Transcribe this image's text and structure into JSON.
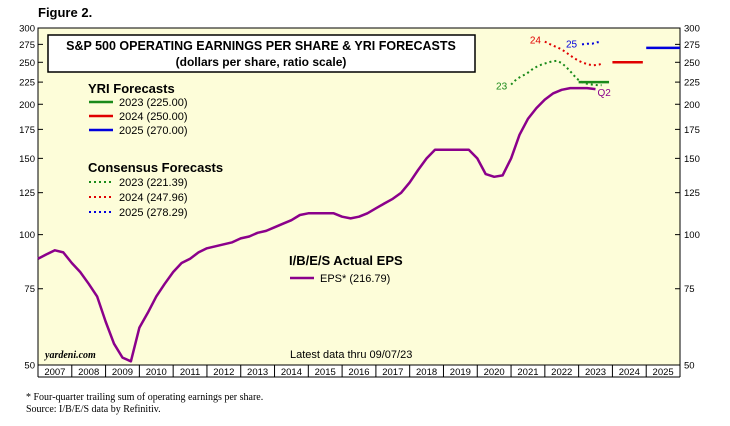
{
  "figure_label": "Figure 2.",
  "chart_data": {
    "type": "line",
    "title": "S&P 500 OPERATING EARNINGS PER SHARE & YRI FORECASTS",
    "subtitle": "(dollars per share, ratio scale)",
    "yscale": "log",
    "ylim": [
      50,
      300
    ],
    "yticks": [
      50,
      75,
      100,
      125,
      150,
      175,
      200,
      225,
      250,
      275,
      300
    ],
    "xlim": [
      2007,
      2026
    ],
    "xticks": [
      "2007",
      "2008",
      "2009",
      "2010",
      "2011",
      "2012",
      "2013",
      "2014",
      "2015",
      "2016",
      "2017",
      "2018",
      "2019",
      "2020",
      "2021",
      "2022",
      "2023",
      "2024",
      "2025"
    ],
    "background": "#fdfdd9",
    "grid": false,
    "source_brand": "yardeni.com",
    "latest_note": "Latest data thru 09/07/23",
    "yri_header": "YRI Forecasts",
    "yri": [
      {
        "label": "2023 (225.00)",
        "value": 225.0,
        "color": "#1a8a1a",
        "x": [
          2023.0,
          2023.9
        ]
      },
      {
        "label": "2024 (250.00)",
        "value": 250.0,
        "color": "#e00000",
        "x": [
          2024.0,
          2024.9
        ]
      },
      {
        "label": "2025 (270.00)",
        "value": 270.0,
        "color": "#0000dd",
        "x": [
          2025.0,
          2026.0
        ]
      }
    ],
    "consensus_header": "Consensus Forecasts",
    "consensus": [
      {
        "label": "2023 (221.39)",
        "color": "#1a8a1a",
        "tag": "23",
        "x": [
          2021.0,
          2021.15,
          2021.3,
          2021.45,
          2021.6,
          2021.75,
          2021.9,
          2022.05,
          2022.2,
          2022.35,
          2022.5,
          2022.65,
          2022.8,
          2022.95,
          2023.1,
          2023.25,
          2023.4,
          2023.55,
          2023.68
        ],
        "y": [
          222,
          228,
          232,
          235,
          240,
          244,
          247,
          249,
          251,
          252,
          249,
          243,
          236,
          229,
          225,
          223,
          222,
          221.5,
          221.39
        ]
      },
      {
        "label": "2024 (247.96)",
        "color": "#e00000",
        "tag": "24",
        "x": [
          2022.0,
          2022.12,
          2022.25,
          2022.4,
          2022.55,
          2022.7,
          2022.85,
          2023.0,
          2023.15,
          2023.3,
          2023.45,
          2023.6,
          2023.68
        ],
        "y": [
          279,
          276,
          273,
          270,
          266,
          261,
          256,
          252,
          249,
          247,
          246,
          247,
          247.96
        ]
      },
      {
        "label": "2025 (278.29)",
        "color": "#0000dd",
        "tag": "25",
        "x": [
          2023.1,
          2023.25,
          2023.4,
          2023.55,
          2023.68
        ],
        "y": [
          275,
          276,
          276,
          278,
          278.29
        ]
      }
    ],
    "actual_header": "I/B/E/S Actual EPS",
    "actual": {
      "label": "EPS* (216.79)",
      "color": "#8b008b",
      "tag": "Q2",
      "x": [
        2007.0,
        2007.25,
        2007.5,
        2007.75,
        2008.0,
        2008.25,
        2008.5,
        2008.75,
        2009.0,
        2009.25,
        2009.5,
        2009.75,
        2010.0,
        2010.25,
        2010.5,
        2010.75,
        2011.0,
        2011.25,
        2011.5,
        2011.75,
        2012.0,
        2012.25,
        2012.5,
        2012.75,
        2013.0,
        2013.25,
        2013.5,
        2013.75,
        2014.0,
        2014.25,
        2014.5,
        2014.75,
        2015.0,
        2015.25,
        2015.5,
        2015.75,
        2016.0,
        2016.25,
        2016.5,
        2016.75,
        2017.0,
        2017.25,
        2017.5,
        2017.75,
        2018.0,
        2018.25,
        2018.5,
        2018.75,
        2019.0,
        2019.25,
        2019.5,
        2019.75,
        2020.0,
        2020.25,
        2020.5,
        2020.75,
        2021.0,
        2021.25,
        2021.5,
        2021.75,
        2022.0,
        2022.25,
        2022.5,
        2022.75,
        2023.0,
        2023.25,
        2023.5
      ],
      "y": [
        88,
        90,
        92,
        91,
        86,
        82,
        77,
        72,
        63,
        56,
        52,
        51,
        61,
        66,
        72,
        77,
        82,
        86,
        88,
        91,
        93,
        94,
        95,
        96,
        98,
        99,
        101,
        102,
        104,
        106,
        108,
        111,
        112,
        112,
        112,
        112,
        110,
        109,
        110,
        112,
        115,
        118,
        121,
        125,
        132,
        141,
        150,
        157,
        157,
        157,
        157,
        157,
        150,
        138,
        136,
        137,
        150,
        170,
        185,
        196,
        205,
        212,
        216,
        218,
        218,
        218,
        216.79
      ]
    }
  }
}
